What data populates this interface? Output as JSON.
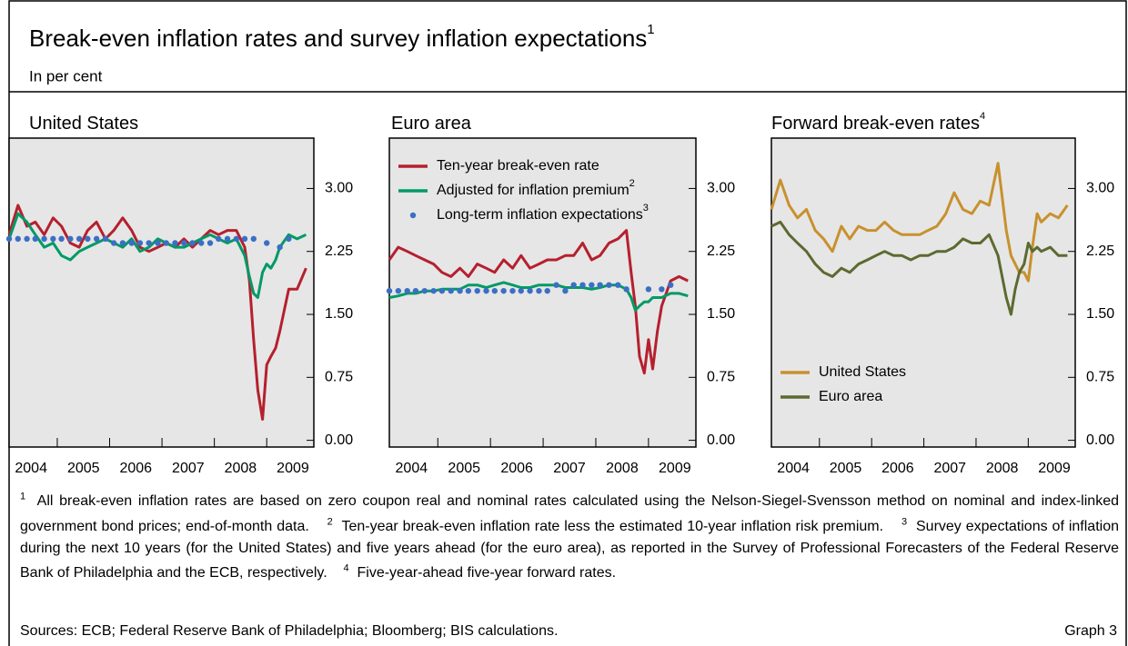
{
  "title": "Break-even inflation rates and survey inflation expectations",
  "title_note": "1",
  "subtitle": "In per cent",
  "chart_data": [
    {
      "type": "line",
      "title": "United States",
      "legend": "none",
      "x": [
        2004.08,
        2004.25,
        2004.42,
        2004.58,
        2004.75,
        2004.92,
        2005.08,
        2005.25,
        2005.42,
        2005.58,
        2005.75,
        2005.92,
        2006.08,
        2006.25,
        2006.42,
        2006.58,
        2006.75,
        2006.92,
        2007.08,
        2007.25,
        2007.42,
        2007.58,
        2007.75,
        2007.92,
        2008.08,
        2008.25,
        2008.42,
        2008.58,
        2008.67,
        2008.75,
        2008.83,
        2008.92,
        2009.0,
        2009.08,
        2009.17,
        2009.25,
        2009.42,
        2009.58,
        2009.75
      ],
      "xlim": [
        2004.08,
        2009.9
      ],
      "xticks": [
        {
          "value": 2004.5,
          "label": "2004"
        },
        {
          "value": 2005.5,
          "label": "2005"
        },
        {
          "value": 2006.5,
          "label": "2006"
        },
        {
          "value": 2007.5,
          "label": "2007"
        },
        {
          "value": 2008.5,
          "label": "2008"
        },
        {
          "value": 2009.5,
          "label": "2009"
        }
      ],
      "xtick_marks": [
        2005,
        2006,
        2007,
        2008,
        2009
      ],
      "ylim": [
        -0.08,
        3.6
      ],
      "yticks": [
        {
          "value": 0,
          "label": "0.00"
        },
        0.75,
        {
          "value": 1.5,
          "label": "1.50"
        },
        2.25,
        {
          "value": 3,
          "label": "3.00"
        }
      ],
      "series": [
        {
          "color": "#b5202e",
          "style": "line",
          "values": [
            2.45,
            2.8,
            2.55,
            2.6,
            2.45,
            2.65,
            2.55,
            2.35,
            2.3,
            2.5,
            2.6,
            2.4,
            2.5,
            2.65,
            2.5,
            2.3,
            2.25,
            2.3,
            2.35,
            2.3,
            2.4,
            2.3,
            2.4,
            2.5,
            2.45,
            2.5,
            2.5,
            2.3,
            1.9,
            1.2,
            0.6,
            0.25,
            0.9,
            1.0,
            1.1,
            1.3,
            1.8,
            1.8,
            2.05
          ]
        },
        {
          "color": "#009a66",
          "style": "line",
          "values": [
            2.4,
            2.7,
            2.6,
            2.45,
            2.3,
            2.35,
            2.2,
            2.15,
            2.25,
            2.3,
            2.35,
            2.4,
            2.35,
            2.3,
            2.4,
            2.25,
            2.3,
            2.4,
            2.35,
            2.3,
            2.3,
            2.35,
            2.4,
            2.45,
            2.4,
            2.35,
            2.4,
            2.2,
            1.95,
            1.75,
            1.7,
            2.0,
            2.1,
            2.05,
            2.15,
            2.3,
            2.45,
            2.4,
            2.45
          ]
        },
        {
          "color": "#3b6fc4",
          "style": "dots",
          "values": [
            2.4,
            2.4,
            2.4,
            2.4,
            2.4,
            2.4,
            2.4,
            2.4,
            2.4,
            2.4,
            2.4,
            2.4,
            2.35,
            2.35,
            2.35,
            2.35,
            2.35,
            2.35,
            2.35,
            2.35,
            2.35,
            2.35,
            2.35,
            2.35,
            2.4,
            2.4,
            2.4,
            2.4,
            null,
            2.4,
            null,
            null,
            2.35,
            null,
            null,
            2.3,
            2.4,
            null,
            null
          ]
        }
      ]
    },
    {
      "type": "line",
      "title": "Euro area",
      "legend": "upper left",
      "x": [
        2004.08,
        2004.25,
        2004.42,
        2004.58,
        2004.75,
        2004.92,
        2005.08,
        2005.25,
        2005.42,
        2005.58,
        2005.75,
        2005.92,
        2006.08,
        2006.25,
        2006.42,
        2006.58,
        2006.75,
        2006.92,
        2007.08,
        2007.25,
        2007.42,
        2007.58,
        2007.75,
        2007.92,
        2008.08,
        2008.25,
        2008.42,
        2008.58,
        2008.67,
        2008.75,
        2008.83,
        2008.92,
        2009.0,
        2009.08,
        2009.17,
        2009.25,
        2009.42,
        2009.58,
        2009.75
      ],
      "xlim": [
        2004.08,
        2009.9
      ],
      "xticks": [
        {
          "value": 2004.5,
          "label": "2004"
        },
        {
          "value": 2005.5,
          "label": "2005"
        },
        {
          "value": 2006.5,
          "label": "2006"
        },
        {
          "value": 2007.5,
          "label": "2007"
        },
        {
          "value": 2008.5,
          "label": "2008"
        },
        {
          "value": 2009.5,
          "label": "2009"
        }
      ],
      "xtick_marks": [
        2005,
        2006,
        2007,
        2008,
        2009
      ],
      "ylim": [
        -0.08,
        3.6
      ],
      "yticks": [
        {
          "value": 0,
          "label": "0.00"
        },
        0.75,
        {
          "value": 1.5,
          "label": "1.50"
        },
        2.25,
        {
          "value": 3,
          "label": "3.00"
        }
      ],
      "series": [
        {
          "name": "Ten-year break-even rate",
          "color": "#b5202e",
          "style": "line",
          "values": [
            2.15,
            2.3,
            2.25,
            2.2,
            2.15,
            2.1,
            2.0,
            1.95,
            2.05,
            1.95,
            2.1,
            2.05,
            2.0,
            2.15,
            2.05,
            2.2,
            2.05,
            2.1,
            2.15,
            2.15,
            2.2,
            2.2,
            2.35,
            2.15,
            2.2,
            2.35,
            2.4,
            2.5,
            2.0,
            1.6,
            1.0,
            0.8,
            1.2,
            0.85,
            1.3,
            1.6,
            1.9,
            1.95,
            1.9
          ]
        },
        {
          "name": "Adjusted for inflation premium",
          "note": "2",
          "color": "#009a66",
          "style": "line",
          "values": [
            1.7,
            1.72,
            1.75,
            1.75,
            1.78,
            1.78,
            1.8,
            1.8,
            1.8,
            1.85,
            1.85,
            1.82,
            1.85,
            1.88,
            1.85,
            1.82,
            1.82,
            1.85,
            1.85,
            1.85,
            1.82,
            1.82,
            1.82,
            1.8,
            1.82,
            1.85,
            1.85,
            1.8,
            1.7,
            1.55,
            1.6,
            1.65,
            1.65,
            1.7,
            1.7,
            1.7,
            1.75,
            1.75,
            1.72
          ]
        },
        {
          "name": "Long-term inflation expectations",
          "note": "3",
          "color": "#3b6fc4",
          "style": "dots",
          "values": [
            1.78,
            1.78,
            1.78,
            1.78,
            1.78,
            1.78,
            1.78,
            1.78,
            1.78,
            1.78,
            1.78,
            1.78,
            1.78,
            1.78,
            1.78,
            1.78,
            1.78,
            1.78,
            1.78,
            1.85,
            1.78,
            1.85,
            1.85,
            1.85,
            1.85,
            1.85,
            1.85,
            1.8,
            null,
            null,
            null,
            null,
            1.8,
            null,
            null,
            1.8,
            1.85,
            null,
            null
          ]
        }
      ]
    },
    {
      "type": "line",
      "title": "Forward break-even rates",
      "title_note": "4",
      "legend": "lower left",
      "x": [
        2004.08,
        2004.25,
        2004.42,
        2004.58,
        2004.75,
        2004.92,
        2005.08,
        2005.25,
        2005.42,
        2005.58,
        2005.75,
        2005.92,
        2006.08,
        2006.25,
        2006.42,
        2006.58,
        2006.75,
        2006.92,
        2007.08,
        2007.25,
        2007.42,
        2007.58,
        2007.75,
        2007.92,
        2008.08,
        2008.25,
        2008.42,
        2008.58,
        2008.67,
        2008.75,
        2008.83,
        2008.92,
        2009.0,
        2009.08,
        2009.17,
        2009.25,
        2009.42,
        2009.58,
        2009.75
      ],
      "xlim": [
        2004.08,
        2009.9
      ],
      "xticks": [
        {
          "value": 2004.5,
          "label": "2004"
        },
        {
          "value": 2005.5,
          "label": "2005"
        },
        {
          "value": 2006.5,
          "label": "2006"
        },
        {
          "value": 2007.5,
          "label": "2007"
        },
        {
          "value": 2008.5,
          "label": "2008"
        },
        {
          "value": 2009.5,
          "label": "2009"
        }
      ],
      "xtick_marks": [
        2005,
        2006,
        2007,
        2008,
        2009
      ],
      "ylim": [
        -0.08,
        3.6
      ],
      "yticks": [
        {
          "value": 0,
          "label": "0.00"
        },
        0.75,
        {
          "value": 1.5,
          "label": "1.50"
        },
        2.25,
        {
          "value": 3,
          "label": "3.00"
        }
      ],
      "series": [
        {
          "name": "United States",
          "color": "#c8912e",
          "style": "line",
          "values": [
            2.75,
            3.1,
            2.8,
            2.65,
            2.75,
            2.5,
            2.4,
            2.25,
            2.55,
            2.4,
            2.55,
            2.5,
            2.5,
            2.6,
            2.5,
            2.45,
            2.45,
            2.45,
            2.5,
            2.55,
            2.7,
            2.95,
            2.75,
            2.7,
            2.85,
            2.8,
            3.3,
            2.5,
            2.2,
            2.1,
            2.0,
            2.0,
            1.9,
            2.3,
            2.7,
            2.6,
            2.7,
            2.65,
            2.8
          ]
        },
        {
          "name": "Euro area",
          "color": "#5c6a30",
          "style": "line",
          "values": [
            2.55,
            2.6,
            2.45,
            2.35,
            2.25,
            2.1,
            2.0,
            1.95,
            2.05,
            2.0,
            2.1,
            2.15,
            2.2,
            2.25,
            2.2,
            2.2,
            2.15,
            2.2,
            2.2,
            2.25,
            2.25,
            2.3,
            2.4,
            2.35,
            2.35,
            2.45,
            2.2,
            1.7,
            1.5,
            1.8,
            2.0,
            2.1,
            2.35,
            2.25,
            2.3,
            2.25,
            2.3,
            2.2,
            2.2
          ]
        }
      ]
    }
  ],
  "footnotes": [
    {
      "mark": "1",
      "text": "All break-even inflation rates are based on zero coupon real and nominal rates calculated using the Nelson-Siegel-Svensson method on nominal and index-linked government bond prices; end-of-month data."
    },
    {
      "mark": "2",
      "text": "Ten-year break-even inflation rate less the estimated 10-year inflation risk premium."
    },
    {
      "mark": "3",
      "text": "Survey expectations of inflation during the next 10 years (for the United States) and five years ahead (for the euro area), as reported in the Survey of Professional Forecasters of the Federal Reserve Bank of Philadelphia and the ECB, respectively."
    },
    {
      "mark": "4",
      "text": "Five-year-ahead five-year forward rates."
    }
  ],
  "sources": "Sources: ECB; Federal Reserve Bank of Philadelphia; Bloomberg; BIS calculations.",
  "graph_label": "Graph 3"
}
